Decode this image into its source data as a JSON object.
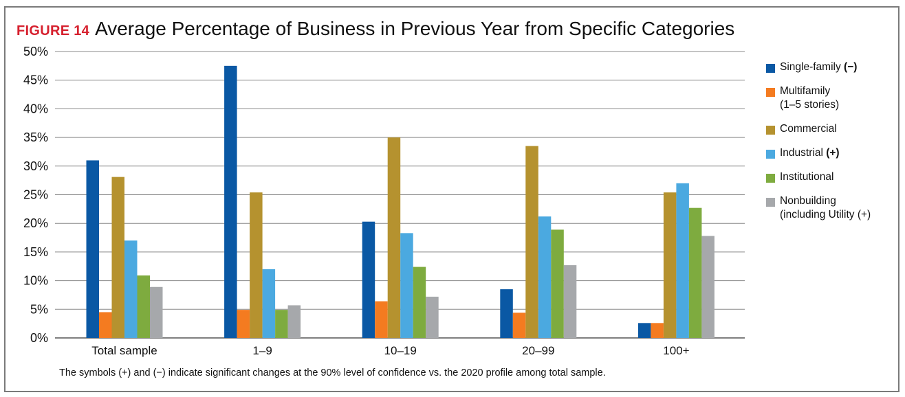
{
  "figure": {
    "label": "FIGURE 14",
    "title": "Average Percentage of Business in Previous Year from Specific Categories",
    "footnote": "The symbols (+) and (−) indicate significant changes at the 90% level of confidence vs. the 2020 profile among total sample."
  },
  "legend": [
    {
      "name": "Single-family",
      "mark": "(−)",
      "line2": ""
    },
    {
      "name": "Multifamily",
      "mark": "",
      "line2": "(1–5 stories)"
    },
    {
      "name": "Commercial",
      "mark": "",
      "line2": ""
    },
    {
      "name": "Industrial",
      "mark": "(+)",
      "line2": ""
    },
    {
      "name": "Institutional",
      "mark": "",
      "line2": ""
    },
    {
      "name": "Nonbuilding",
      "mark": "",
      "line2": "(including Utility (+)"
    }
  ],
  "chart_data": {
    "type": "bar",
    "title": "Average Percentage of Business in Previous Year from Specific Categories",
    "xlabel": "",
    "ylabel": "",
    "ylim": [
      0,
      50
    ],
    "y_ticks": [
      0,
      5,
      10,
      15,
      20,
      25,
      30,
      35,
      40,
      45,
      50
    ],
    "y_tick_labels": [
      "0%",
      "5%",
      "10%",
      "15%",
      "20%",
      "25%",
      "30%",
      "35%",
      "40%",
      "45%",
      "50%"
    ],
    "grid": true,
    "legend_position": "right",
    "categories": [
      "Total sample",
      "1–9",
      "10–19",
      "20–99",
      "100+"
    ],
    "series": [
      {
        "name": "Single-family (−)",
        "color": "#0a58a4",
        "values": [
          31,
          47.5,
          20.3,
          8.5,
          2.6
        ]
      },
      {
        "name": "Multifamily (1–5 stories)",
        "color": "#f47b20",
        "values": [
          4.5,
          4.9,
          6.4,
          4.4,
          2.6
        ]
      },
      {
        "name": "Commercial",
        "color": "#b5922f",
        "values": [
          28.1,
          25.4,
          35,
          33.5,
          25.4
        ]
      },
      {
        "name": "Industrial (+)",
        "color": "#4ba9e0",
        "values": [
          17,
          12,
          18.3,
          21.2,
          27
        ]
      },
      {
        "name": "Institutional",
        "color": "#7eab3f",
        "values": [
          10.9,
          4.9,
          12.4,
          18.9,
          22.7
        ]
      },
      {
        "name": "Nonbuilding (including Utility (+)",
        "color": "#a6a8ab",
        "values": [
          8.9,
          5.7,
          7.2,
          12.7,
          17.8
        ]
      }
    ]
  }
}
